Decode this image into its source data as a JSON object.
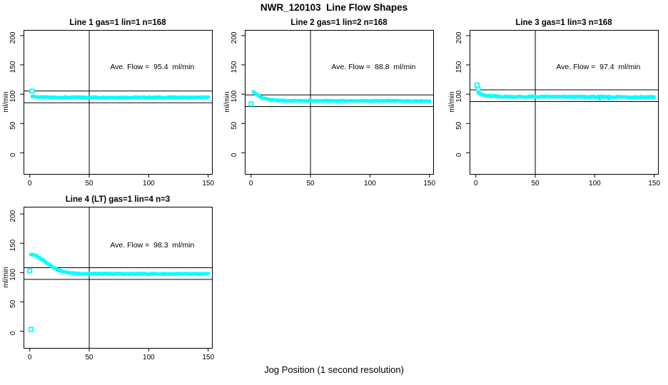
{
  "figure": {
    "title": "NWR_120103  Line Flow Shapes",
    "xlabel": "Jog Position (1 second resolution)",
    "ylabel": "ml/min",
    "marker_color": "#00FFFF",
    "line_color": "#000000",
    "background": "#FFFFFF"
  },
  "chart_data": [
    {
      "type": "scatter",
      "title": "Line 1 gas=1 lin=1 n=168",
      "annotation": "Ave. Flow =  95.4  ml/min",
      "ave_flow": 95.4,
      "n": 168,
      "ylabel": "ml/min",
      "x_ticks": [
        0,
        50,
        100,
        150
      ],
      "y_ticks": [
        0,
        50,
        100,
        150,
        200
      ],
      "xlim": [
        0,
        153
      ],
      "ylim": [
        -36,
        210
      ],
      "ref_h_lines": [
        105.4,
        85.4
      ],
      "ref_v_line": 50,
      "band_profile": [
        [
          2,
          97
        ],
        [
          4,
          95.8
        ],
        [
          8,
          95
        ],
        [
          15,
          94.7
        ],
        [
          150,
          94.5
        ]
      ],
      "band_noise": 0.85,
      "outliers": [
        [
          2,
          105.2
        ]
      ],
      "extra_points": []
    },
    {
      "type": "scatter",
      "title": "Line 2 gas=1 lin=2 n=168",
      "annotation": "Ave. Flow =  88.8  ml/min",
      "ave_flow": 88.8,
      "n": 168,
      "ylabel": "ml/min",
      "x_ticks": [
        0,
        50,
        100,
        150
      ],
      "y_ticks": [
        0,
        50,
        100,
        150,
        200
      ],
      "xlim": [
        0,
        153
      ],
      "ylim": [
        -36,
        210
      ],
      "ref_h_lines": [
        98.8,
        78.8
      ],
      "ref_v_line": 50,
      "band_profile": [
        [
          2,
          104
        ],
        [
          4,
          100.5
        ],
        [
          6,
          97.5
        ],
        [
          9,
          94.5
        ],
        [
          12,
          92.3
        ],
        [
          16,
          90.5
        ],
        [
          20,
          89.6
        ],
        [
          26,
          89
        ],
        [
          40,
          88.6
        ],
        [
          150,
          88.4
        ]
      ],
      "band_noise": 0.8,
      "outliers": [
        [
          0,
          83.2
        ]
      ],
      "extra_points": []
    },
    {
      "type": "scatter",
      "title": "Line 3 gas=1 lin=3 n=168",
      "annotation": "Ave. Flow =  97.4  ml/min",
      "ave_flow": 97.4,
      "n": 168,
      "ylabel": "ml/min",
      "x_ticks": [
        0,
        50,
        100,
        150
      ],
      "y_ticks": [
        0,
        50,
        100,
        150,
        200
      ],
      "xlim": [
        0,
        153
      ],
      "ylim": [
        -36,
        210
      ],
      "ref_h_lines": [
        107.4,
        87.4
      ],
      "ref_v_line": 50,
      "band_profile": [
        [
          2,
          103
        ],
        [
          4,
          100
        ],
        [
          7,
          98
        ],
        [
          11,
          96.8
        ],
        [
          18,
          96
        ],
        [
          35,
          95.6
        ],
        [
          150,
          95.2
        ]
      ],
      "band_noise": 1.15,
      "outliers": [
        [
          1,
          115.5
        ],
        [
          2,
          108.5
        ]
      ],
      "extra_points": [
        [
          104,
          91.6
        ],
        [
          112,
          92.1
        ]
      ]
    },
    {
      "type": "scatter",
      "title": "Line 4 (LT) gas=1 lin=4 n=3",
      "annotation": "Ave. Flow =  98.3  ml/min",
      "ave_flow": 98.3,
      "n": 3,
      "ylabel": "ml/min",
      "x_ticks": [
        0,
        50,
        100,
        150
      ],
      "y_ticks": [
        0,
        50,
        100,
        150,
        200
      ],
      "xlim": [
        0,
        153
      ],
      "ylim": [
        -36,
        212
      ],
      "ref_h_lines": [
        108.3,
        88.3
      ],
      "ref_v_line": 50,
      "band_profile": [
        [
          1,
          131
        ],
        [
          3,
          130
        ],
        [
          6,
          128
        ],
        [
          9,
          124.5
        ],
        [
          12,
          120.5
        ],
        [
          15,
          116
        ],
        [
          18,
          111.5
        ],
        [
          21,
          107.5
        ],
        [
          24,
          104.5
        ],
        [
          27,
          102
        ],
        [
          30,
          100.5
        ],
        [
          35,
          99
        ],
        [
          45,
          98.3
        ],
        [
          60,
          98
        ],
        [
          150,
          97.6
        ]
      ],
      "band_noise": 0.9,
      "outliers": [
        [
          0,
          102.8
        ],
        [
          1,
          3
        ]
      ],
      "extra_points": []
    }
  ]
}
